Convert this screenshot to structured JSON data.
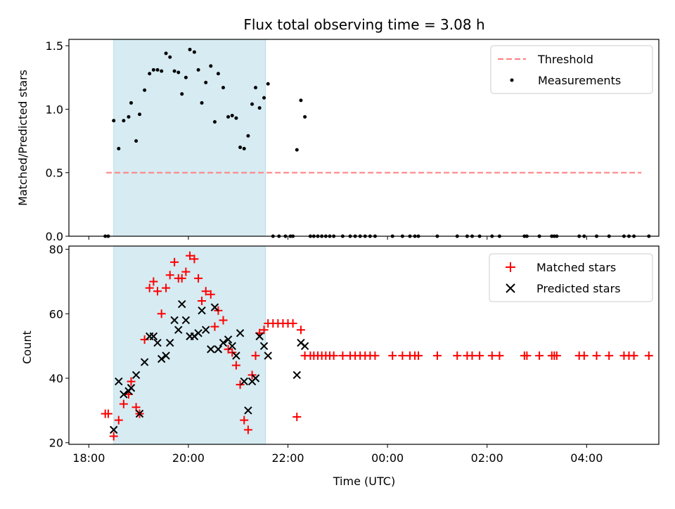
{
  "chart_data": [
    {
      "type": "scatter",
      "title": "Flux total observing time = 3.08 h",
      "ylabel": "Matched/Predicted stars",
      "ylim": [
        0,
        1.55
      ],
      "xlim_hours": [
        17.6,
        29.45
      ],
      "shaded_span_hours": [
        18.5,
        21.55
      ],
      "yticks": [
        {
          "v": 0.0,
          "label": "0.0"
        },
        {
          "v": 0.5,
          "label": "0.5"
        },
        {
          "v": 1.0,
          "label": "1.0"
        },
        {
          "v": 1.5,
          "label": "1.5"
        }
      ],
      "threshold": {
        "value": 0.5,
        "x_start": 18.35,
        "x_end": 29.1,
        "color": "#ff7f7f"
      },
      "legend": {
        "position": "top-right",
        "threshold_label": "Threshold",
        "measurements_label": "Measurements"
      },
      "measurements": [
        {
          "x": 18.33,
          "y": 0
        },
        {
          "x": 18.39,
          "y": 0
        },
        {
          "x": 18.5,
          "y": 0.91
        },
        {
          "x": 18.6,
          "y": 0.69
        },
        {
          "x": 18.7,
          "y": 0.91
        },
        {
          "x": 18.8,
          "y": 0.94
        },
        {
          "x": 18.85,
          "y": 1.05
        },
        {
          "x": 18.95,
          "y": 0.75
        },
        {
          "x": 19.02,
          "y": 0.96
        },
        {
          "x": 19.12,
          "y": 1.15
        },
        {
          "x": 19.22,
          "y": 1.28
        },
        {
          "x": 19.3,
          "y": 1.31
        },
        {
          "x": 19.38,
          "y": 1.31
        },
        {
          "x": 19.46,
          "y": 1.3
        },
        {
          "x": 19.55,
          "y": 1.44
        },
        {
          "x": 19.63,
          "y": 1.41
        },
        {
          "x": 19.72,
          "y": 1.3
        },
        {
          "x": 19.8,
          "y": 1.29
        },
        {
          "x": 19.87,
          "y": 1.12
        },
        {
          "x": 19.95,
          "y": 1.25
        },
        {
          "x": 20.03,
          "y": 1.47
        },
        {
          "x": 20.12,
          "y": 1.45
        },
        {
          "x": 20.2,
          "y": 1.31
        },
        {
          "x": 20.27,
          "y": 1.05
        },
        {
          "x": 20.35,
          "y": 1.21
        },
        {
          "x": 20.45,
          "y": 1.34
        },
        {
          "x": 20.53,
          "y": 0.9
        },
        {
          "x": 20.6,
          "y": 1.28
        },
        {
          "x": 20.7,
          "y": 1.17
        },
        {
          "x": 20.8,
          "y": 0.94
        },
        {
          "x": 20.88,
          "y": 0.95
        },
        {
          "x": 20.96,
          "y": 0.93
        },
        {
          "x": 21.04,
          "y": 0.7
        },
        {
          "x": 21.12,
          "y": 0.69
        },
        {
          "x": 21.2,
          "y": 0.79
        },
        {
          "x": 21.28,
          "y": 1.04
        },
        {
          "x": 21.35,
          "y": 1.17
        },
        {
          "x": 21.43,
          "y": 1.01
        },
        {
          "x": 21.52,
          "y": 1.09
        },
        {
          "x": 21.6,
          "y": 1.2
        },
        {
          "x": 22.18,
          "y": 0.68
        },
        {
          "x": 22.26,
          "y": 1.07
        },
        {
          "x": 22.34,
          "y": 0.94
        },
        {
          "x": 21.7,
          "y": 0
        },
        {
          "x": 21.82,
          "y": 0
        },
        {
          "x": 21.95,
          "y": 0
        },
        {
          "x": 22.05,
          "y": 0
        },
        {
          "x": 22.1,
          "y": 0
        }
      ],
      "zero_measurements_x": [
        22.45,
        22.52,
        22.6,
        22.68,
        22.76,
        22.84,
        22.92,
        23.1,
        23.25,
        23.35,
        23.45,
        23.55,
        23.65,
        23.75,
        24.1,
        24.3,
        24.45,
        24.55,
        24.62,
        25.0,
        25.4,
        25.6,
        25.7,
        25.85,
        26.1,
        26.25,
        26.75,
        26.8,
        27.05,
        27.3,
        27.35,
        27.4,
        27.85,
        27.95,
        28.2,
        28.45,
        28.75,
        28.85,
        28.95,
        29.25
      ]
    },
    {
      "type": "scatter",
      "xlabel": "Time (UTC)",
      "ylabel": "Count",
      "ylim": [
        19.5,
        81
      ],
      "xlim_hours": [
        17.6,
        29.45
      ],
      "shaded_span_hours": [
        18.5,
        21.55
      ],
      "yticks": [
        {
          "v": 20,
          "label": "20"
        },
        {
          "v": 40,
          "label": "40"
        },
        {
          "v": 60,
          "label": "60"
        },
        {
          "v": 80,
          "label": "80"
        }
      ],
      "xticks": [
        {
          "v": 18,
          "label": "18:00"
        },
        {
          "v": 20,
          "label": "20:00"
        },
        {
          "v": 22,
          "label": "22:00"
        },
        {
          "v": 24,
          "label": "00:00"
        },
        {
          "v": 26,
          "label": "02:00"
        },
        {
          "v": 28,
          "label": "04:00"
        }
      ],
      "legend": {
        "position": "top-right",
        "matched_label": "Matched stars",
        "predicted_label": "Predicted stars"
      },
      "series": [
        {
          "name": "Matched stars",
          "marker": "+",
          "color": "#ff0000",
          "points": [
            {
              "x": 18.33,
              "y": 29
            },
            {
              "x": 18.39,
              "y": 29
            },
            {
              "x": 18.5,
              "y": 22
            },
            {
              "x": 18.6,
              "y": 27
            },
            {
              "x": 18.7,
              "y": 32
            },
            {
              "x": 18.8,
              "y": 35
            },
            {
              "x": 18.85,
              "y": 39
            },
            {
              "x": 18.95,
              "y": 31
            },
            {
              "x": 19.02,
              "y": 29
            },
            {
              "x": 19.12,
              "y": 52
            },
            {
              "x": 19.22,
              "y": 68
            },
            {
              "x": 19.3,
              "y": 70
            },
            {
              "x": 19.38,
              "y": 67
            },
            {
              "x": 19.46,
              "y": 60
            },
            {
              "x": 19.55,
              "y": 68
            },
            {
              "x": 19.63,
              "y": 72
            },
            {
              "x": 19.72,
              "y": 76
            },
            {
              "x": 19.8,
              "y": 71
            },
            {
              "x": 19.87,
              "y": 71
            },
            {
              "x": 19.95,
              "y": 73
            },
            {
              "x": 20.03,
              "y": 78
            },
            {
              "x": 20.12,
              "y": 77
            },
            {
              "x": 20.2,
              "y": 71
            },
            {
              "x": 20.27,
              "y": 64
            },
            {
              "x": 20.35,
              "y": 67
            },
            {
              "x": 20.45,
              "y": 66
            },
            {
              "x": 20.53,
              "y": 56
            },
            {
              "x": 20.6,
              "y": 61
            },
            {
              "x": 20.7,
              "y": 58
            },
            {
              "x": 20.8,
              "y": 49
            },
            {
              "x": 20.88,
              "y": 48
            },
            {
              "x": 20.96,
              "y": 44
            },
            {
              "x": 21.04,
              "y": 38
            },
            {
              "x": 21.12,
              "y": 27
            },
            {
              "x": 21.2,
              "y": 24
            },
            {
              "x": 21.28,
              "y": 41
            },
            {
              "x": 21.35,
              "y": 47
            },
            {
              "x": 21.43,
              "y": 54
            },
            {
              "x": 21.52,
              "y": 55
            },
            {
              "x": 21.6,
              "y": 57
            },
            {
              "x": 21.7,
              "y": 57
            },
            {
              "x": 21.8,
              "y": 57
            },
            {
              "x": 21.9,
              "y": 57
            },
            {
              "x": 22.0,
              "y": 57
            },
            {
              "x": 22.1,
              "y": 57
            },
            {
              "x": 22.18,
              "y": 28
            },
            {
              "x": 22.26,
              "y": 55
            },
            {
              "x": 22.34,
              "y": 47
            },
            {
              "x": 22.45,
              "y": 47
            },
            {
              "x": 22.52,
              "y": 47
            },
            {
              "x": 22.6,
              "y": 47
            },
            {
              "x": 22.68,
              "y": 47
            },
            {
              "x": 22.76,
              "y": 47
            },
            {
              "x": 22.84,
              "y": 47
            },
            {
              "x": 22.92,
              "y": 47
            },
            {
              "x": 23.1,
              "y": 47
            },
            {
              "x": 23.25,
              "y": 47
            },
            {
              "x": 23.35,
              "y": 47
            },
            {
              "x": 23.45,
              "y": 47
            },
            {
              "x": 23.55,
              "y": 47
            },
            {
              "x": 23.65,
              "y": 47
            },
            {
              "x": 23.75,
              "y": 47
            },
            {
              "x": 24.1,
              "y": 47
            },
            {
              "x": 24.3,
              "y": 47
            },
            {
              "x": 24.45,
              "y": 47
            },
            {
              "x": 24.55,
              "y": 47
            },
            {
              "x": 24.62,
              "y": 47
            },
            {
              "x": 25.0,
              "y": 47
            },
            {
              "x": 25.4,
              "y": 47
            },
            {
              "x": 25.6,
              "y": 47
            },
            {
              "x": 25.7,
              "y": 47
            },
            {
              "x": 25.85,
              "y": 47
            },
            {
              "x": 26.1,
              "y": 47
            },
            {
              "x": 26.25,
              "y": 47
            },
            {
              "x": 26.75,
              "y": 47
            },
            {
              "x": 26.8,
              "y": 47
            },
            {
              "x": 27.05,
              "y": 47
            },
            {
              "x": 27.3,
              "y": 47
            },
            {
              "x": 27.35,
              "y": 47
            },
            {
              "x": 27.4,
              "y": 47
            },
            {
              "x": 27.85,
              "y": 47
            },
            {
              "x": 27.95,
              "y": 47
            },
            {
              "x": 28.2,
              "y": 47
            },
            {
              "x": 28.45,
              "y": 47
            },
            {
              "x": 28.75,
              "y": 47
            },
            {
              "x": 28.85,
              "y": 47
            },
            {
              "x": 28.95,
              "y": 47
            },
            {
              "x": 29.25,
              "y": 47
            }
          ]
        },
        {
          "name": "Predicted stars",
          "marker": "x",
          "color": "#000000",
          "points": [
            {
              "x": 18.5,
              "y": 24
            },
            {
              "x": 18.6,
              "y": 39
            },
            {
              "x": 18.7,
              "y": 35
            },
            {
              "x": 18.8,
              "y": 36
            },
            {
              "x": 18.85,
              "y": 37
            },
            {
              "x": 18.95,
              "y": 41
            },
            {
              "x": 19.02,
              "y": 29
            },
            {
              "x": 19.12,
              "y": 45
            },
            {
              "x": 19.22,
              "y": 53
            },
            {
              "x": 19.3,
              "y": 53
            },
            {
              "x": 19.38,
              "y": 51
            },
            {
              "x": 19.46,
              "y": 46
            },
            {
              "x": 19.55,
              "y": 47
            },
            {
              "x": 19.63,
              "y": 51
            },
            {
              "x": 19.72,
              "y": 58
            },
            {
              "x": 19.8,
              "y": 55
            },
            {
              "x": 19.87,
              "y": 63
            },
            {
              "x": 19.95,
              "y": 58
            },
            {
              "x": 20.03,
              "y": 53
            },
            {
              "x": 20.12,
              "y": 53
            },
            {
              "x": 20.2,
              "y": 54
            },
            {
              "x": 20.27,
              "y": 61
            },
            {
              "x": 20.35,
              "y": 55
            },
            {
              "x": 20.45,
              "y": 49
            },
            {
              "x": 20.53,
              "y": 62
            },
            {
              "x": 20.6,
              "y": 49
            },
            {
              "x": 20.7,
              "y": 51
            },
            {
              "x": 20.8,
              "y": 52
            },
            {
              "x": 20.88,
              "y": 50
            },
            {
              "x": 20.96,
              "y": 47
            },
            {
              "x": 21.04,
              "y": 54
            },
            {
              "x": 21.12,
              "y": 39
            },
            {
              "x": 21.2,
              "y": 30
            },
            {
              "x": 21.28,
              "y": 39
            },
            {
              "x": 21.35,
              "y": 40
            },
            {
              "x": 21.43,
              "y": 53
            },
            {
              "x": 21.52,
              "y": 50
            },
            {
              "x": 21.6,
              "y": 47
            },
            {
              "x": 22.18,
              "y": 41
            },
            {
              "x": 22.26,
              "y": 51
            },
            {
              "x": 22.34,
              "y": 50
            }
          ]
        }
      ]
    }
  ]
}
